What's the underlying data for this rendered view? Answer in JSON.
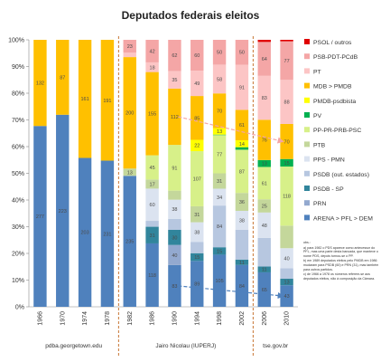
{
  "title": "Deputados federais eleitos",
  "chart_data": {
    "type": "bar",
    "stacked": true,
    "normalized": true,
    "title": "Deputados federais eleitos",
    "xlabel": "",
    "ylabel": "",
    "ylim": [
      0,
      100
    ],
    "y_ticks": [
      "0%",
      "10%",
      "20%",
      "30%",
      "40%",
      "50%",
      "60%",
      "70%",
      "80%",
      "90%",
      "100%"
    ],
    "categories": [
      "1966",
      "1970",
      "1974",
      "1978",
      "1982",
      "1986",
      "1990",
      "1994",
      "1998",
      "2002",
      "2006",
      "2010"
    ],
    "grid": false,
    "legend_position": "right",
    "legend": [
      "PSOL / outros",
      "PSB-PDT-PCdB",
      "PT",
      "MDB > PMDB",
      "PMDB-psdbista",
      "PV",
      "PP-PR-PRB-PSC",
      "PTB",
      "PPS - PMN",
      "PSDB (out. estados)",
      "PSDB - SP",
      "PRN",
      "ARENA > PFL > DEM"
    ],
    "series": [
      {
        "name": "ARENA > PFL > DEM",
        "color": "#4f81bd",
        "values": [
          277,
          223,
          203,
          231,
          235,
          118,
          83,
          89,
          105,
          84,
          65,
          43
        ],
        "labels": [
          "277",
          "223",
          "203",
          "231",
          "235",
          "118",
          "83",
          "89",
          "105",
          "84",
          "65",
          "43"
        ]
      },
      {
        "name": "PRN",
        "color": "#93a9cf",
        "values": [
          0,
          0,
          0,
          0,
          0,
          0,
          40,
          0,
          0,
          0,
          0,
          0
        ],
        "labels": [
          "",
          "",
          "",
          "",
          "",
          "",
          "40",
          "",
          "",
          "",
          "",
          ""
        ]
      },
      {
        "name": "PSDB - SP",
        "color": "#31859c",
        "values": [
          0,
          0,
          0,
          0,
          0,
          31,
          30,
          15,
          15,
          11,
          11,
          13
        ],
        "labels": [
          "",
          "",
          "",
          "",
          "",
          "31",
          "30",
          "15",
          "15",
          "11",
          "11",
          "13"
        ]
      },
      {
        "name": "PSDB (out. estados)",
        "color": "#b7c7e0",
        "values": [
          0,
          0,
          0,
          0,
          0,
          11,
          22,
          22,
          84,
          60,
          54,
          21
        ],
        "labels": [
          "",
          "",
          "",
          "",
          "",
          "",
          "",
          "",
          "84",
          "",
          "",
          ""
        ]
      },
      {
        "name": "PPS - PMN",
        "color": "#dbe3f0",
        "values": [
          0,
          0,
          0,
          0,
          0,
          60,
          38,
          38,
          34,
          38,
          48,
          40
        ],
        "labels": [
          "",
          "",
          "",
          "",
          "",
          "60",
          "38",
          "38",
          "34",
          "38",
          "48",
          "40"
        ]
      },
      {
        "name": "PTB",
        "color": "#c4d79b",
        "values": [
          0,
          0,
          0,
          0,
          13,
          17,
          18,
          31,
          31,
          36,
          25,
          45
        ],
        "labels": [
          "",
          "",
          "",
          "",
          "13",
          "17",
          "",
          "31",
          "31",
          "36",
          "25",
          ""
        ]
      },
      {
        "name": "PP-PR-PRB-PSC",
        "color": "#d7f089",
        "values": [
          0,
          0,
          0,
          0,
          0,
          45,
          91,
          107,
          77,
          87,
          61,
          118
        ],
        "labels": [
          "",
          "",
          "",
          "",
          "",
          "45",
          "91",
          "107",
          "77",
          "87",
          "61",
          "118"
        ]
      },
      {
        "name": "PV",
        "color": "#00b050",
        "values": [
          0,
          0,
          0,
          0,
          0,
          0,
          0,
          0,
          1,
          5,
          13,
          15
        ],
        "labels": [
          "",
          "",
          "",
          "",
          "",
          "",
          "",
          "",
          "",
          "",
          "13",
          "15"
        ]
      },
      {
        "name": "PMDB-psdbista",
        "color": "#ffff00",
        "values": [
          0,
          0,
          0,
          0,
          0,
          0,
          0,
          22,
          13,
          14,
          0,
          0
        ],
        "labels": [
          "",
          "",
          "",
          "",
          "",
          "",
          "",
          "22",
          "13",
          "14",
          "",
          ""
        ]
      },
      {
        "name": "MDB > PMDB",
        "color": "#ffc000",
        "values": [
          132,
          87,
          161,
          191,
          200,
          155,
          112,
          85,
          70,
          61,
          76,
          70
        ],
        "labels": [
          "132",
          "87",
          "161",
          "191",
          "200",
          "155",
          "112",
          "85",
          "70",
          "61",
          "76",
          "70"
        ]
      },
      {
        "name": "PT",
        "color": "#fcc5c5",
        "values": [
          0,
          0,
          0,
          0,
          8,
          18,
          35,
          49,
          58,
          91,
          83,
          88
        ],
        "labels": [
          "",
          "",
          "",
          "",
          "8",
          "18",
          "35",
          "49",
          "58",
          "91",
          "83",
          "88"
        ]
      },
      {
        "name": "PSB-PDT-PCdB",
        "color": "#f4a6a6",
        "values": [
          0,
          0,
          0,
          0,
          23,
          42,
          62,
          60,
          50,
          50,
          64,
          77
        ],
        "labels": [
          "",
          "",
          "",
          "",
          "23",
          "42",
          "62",
          "60",
          "50",
          "50",
          "64",
          "77"
        ]
      },
      {
        "name": "PSOL / outros",
        "color": "#e00000",
        "values": [
          0,
          0,
          0,
          0,
          0,
          0,
          0,
          0,
          0,
          0,
          4,
          3
        ],
        "labels": [
          "",
          "",
          "",
          "",
          "",
          "",
          "",
          "",
          "",
          "",
          "",
          ""
        ]
      }
    ],
    "sources": [
      {
        "text": "pdba.georgetown.edu",
        "from": 0,
        "to": 3
      },
      {
        "text": "Jairo Nicolau (IUPERJ)",
        "from": 4,
        "to": 9
      },
      {
        "text": "tse.gov.br",
        "from": 10,
        "to": 11
      }
    ],
    "trend_arrows": [
      {
        "series": "MDB > PMDB",
        "color": "#f4a6a6",
        "from_category": "1990",
        "to_category": "2010"
      },
      {
        "series": "ARENA > PFL > DEM",
        "color": "#4f81bd",
        "from_category": "1990",
        "to_category": "2010"
      }
    ]
  },
  "notes": [
    "obs.:",
    "a) para 1982 o PDS aparece como antecessor do PFL, mas uma parte desta bancada, que manteve o nome PDS, depois tornou-se o PP.",
    "b) em 1989 deputados eleitos pelo PMDB em 1986 mudaram para PSDB (60) e PRN (31), mas também para outros partidos.",
    "c) de 1966 a 1978 os números referem-se aos deputados eleitos, não à composição da Câmara."
  ]
}
